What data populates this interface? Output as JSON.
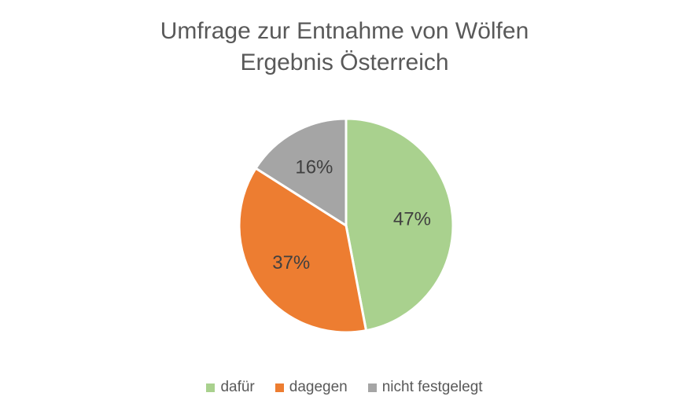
{
  "chart_data": {
    "type": "pie",
    "title_lines": [
      "Umfrage zur Entnahme von Wölfen",
      "Ergebnis Österreich"
    ],
    "categories": [
      "dafür",
      "dagegen",
      "nicht festgelegt"
    ],
    "values": [
      47,
      37,
      16
    ],
    "labels": [
      "47%",
      "37%",
      "16%"
    ],
    "colors": [
      "#a9d18e",
      "#ed7d31",
      "#a5a5a5"
    ],
    "legend_position": "bottom"
  }
}
